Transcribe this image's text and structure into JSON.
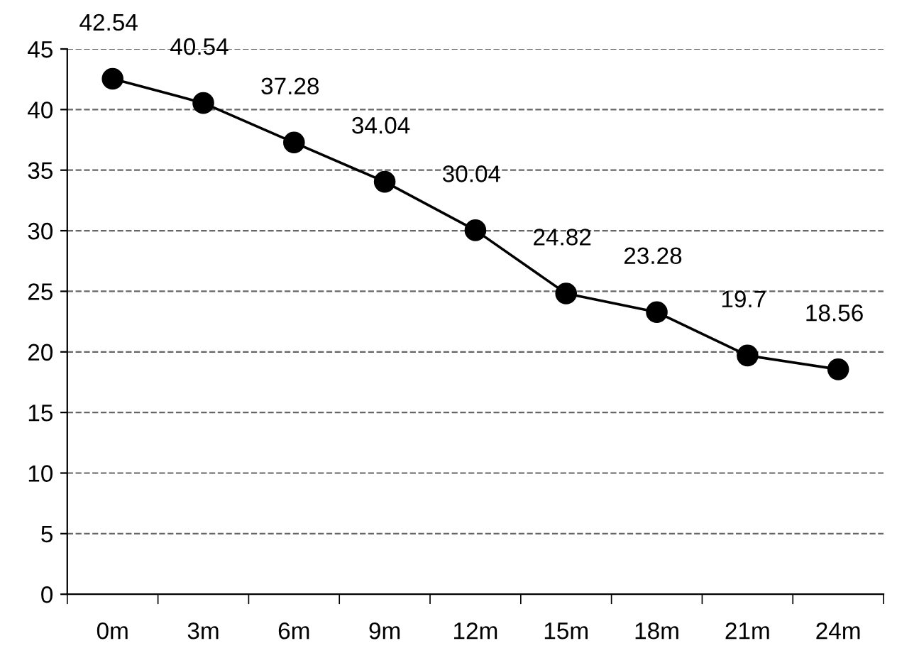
{
  "chart_data": {
    "type": "line",
    "categories": [
      "0m",
      "3m",
      "6m",
      "9m",
      "12m",
      "15m",
      "18m",
      "21m",
      "24m"
    ],
    "series": [
      {
        "color": "#000000",
        "values": [
          42.54,
          40.54,
          37.28,
          34.04,
          30.04,
          24.82,
          23.28,
          19.7,
          18.56
        ]
      }
    ],
    "ylim": [
      0,
      45
    ],
    "yticks": [
      0,
      5,
      10,
      15,
      20,
      25,
      30,
      35,
      40,
      45
    ],
    "grid": "y",
    "marker": "circle",
    "line_style": "solid",
    "data_labels": true,
    "legend": false
  }
}
